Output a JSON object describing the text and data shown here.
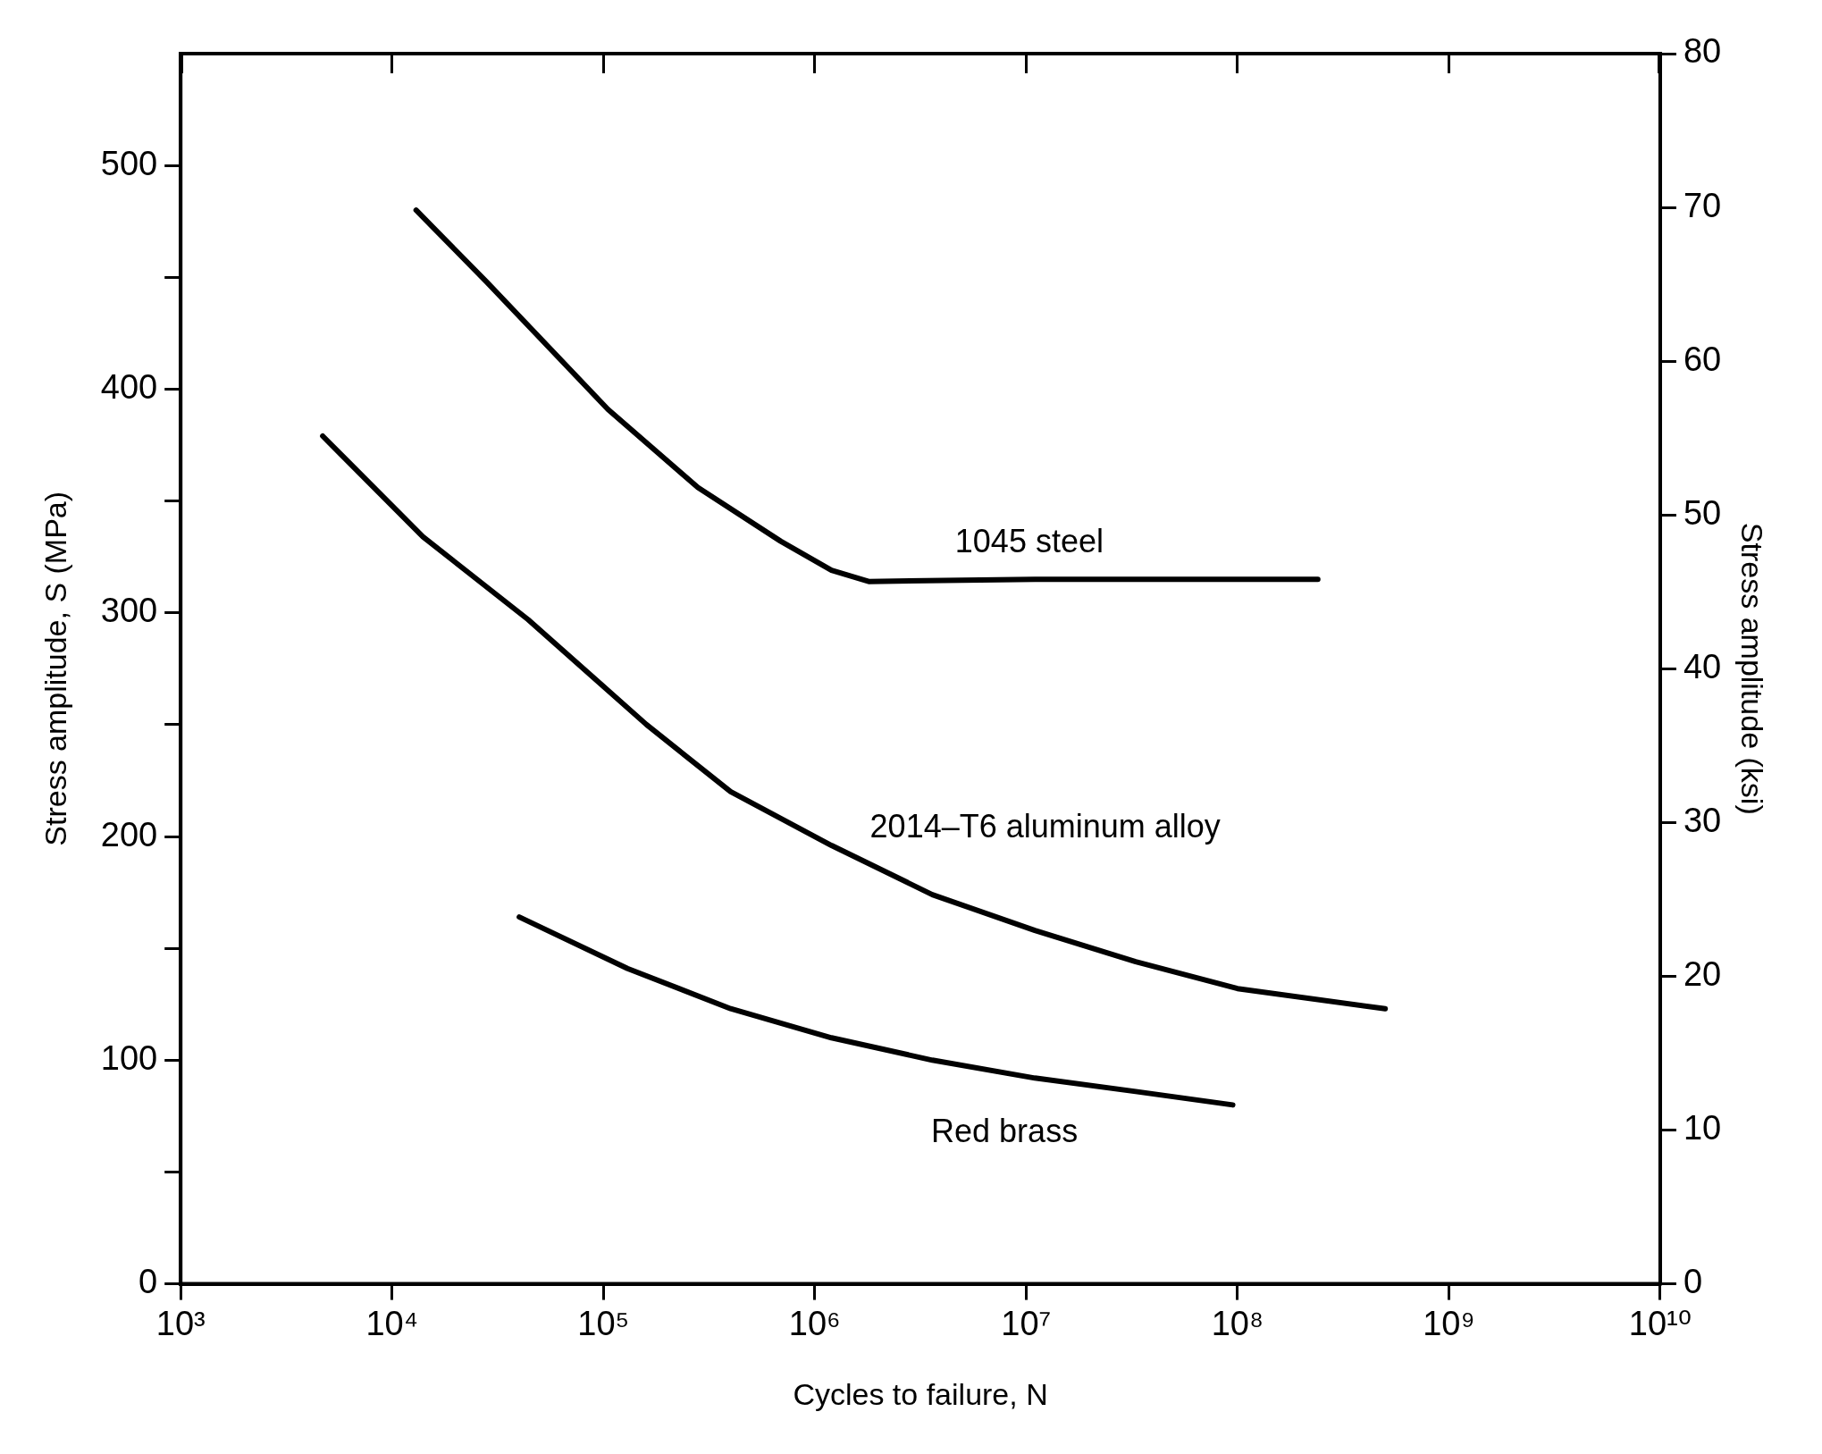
{
  "chart_data": {
    "type": "line",
    "xlabel": "Cycles to failure, N",
    "ylabel": "Stress amplitude, S (MPa)",
    "y2label": "Stress amplitude (ksi)",
    "log": "x",
    "grid": false,
    "legend": false,
    "marker": "none",
    "line_style": "solid",
    "xlim": [
      1000,
      10000000000
    ],
    "xticks": [
      {
        "value": 1000,
        "label": "10³"
      },
      {
        "value": 10000,
        "label": "10⁴"
      },
      {
        "value": 100000,
        "label": "10⁵"
      },
      {
        "value": 1000000,
        "label": "10⁶"
      },
      {
        "value": 10000000,
        "label": "10⁷"
      },
      {
        "value": 100000000,
        "label": "10⁸"
      },
      {
        "value": 1000000000,
        "label": "10⁹"
      },
      {
        "value": 10000000000,
        "label": "10¹⁰"
      }
    ],
    "ylim": [
      0,
      550
    ],
    "yticks": [
      0,
      {
        "value": 50,
        "label": null
      },
      100,
      {
        "value": 150,
        "label": null
      },
      200,
      {
        "value": 250,
        "label": null
      },
      300,
      {
        "value": 350,
        "label": null
      },
      400,
      {
        "value": 450,
        "label": null
      },
      500
    ],
    "y2lim": [
      0,
      80
    ],
    "y2ticks": [
      0,
      10,
      20,
      30,
      40,
      50,
      60,
      70,
      80
    ],
    "series": [
      {
        "name": "1045 steel",
        "color": "#000000",
        "x": [
          13000,
          28000,
          105000,
          280000,
          690000,
          1200000,
          1800000,
          11000000,
          240000000
        ],
        "values": [
          480,
          448,
          391,
          356,
          332,
          319,
          314,
          315,
          315
        ]
      },
      {
        "name": "2014–T6 aluminum alloy",
        "color": "#000000",
        "x": [
          4700,
          14000,
          44000,
          160000,
          400000,
          1200000,
          3600000,
          11000000,
          33000000,
          100000000,
          500000000
        ],
        "values": [
          379,
          334,
          297,
          250,
          220,
          196,
          174,
          158,
          144,
          132,
          123
        ]
      },
      {
        "name": "Red brass",
        "color": "#000000",
        "x": [
          40000,
          130000,
          400000,
          1200000,
          3600000,
          11000000,
          33000000,
          95000000
        ],
        "values": [
          164,
          141,
          123,
          110,
          100,
          92,
          86,
          80
        ]
      }
    ]
  }
}
